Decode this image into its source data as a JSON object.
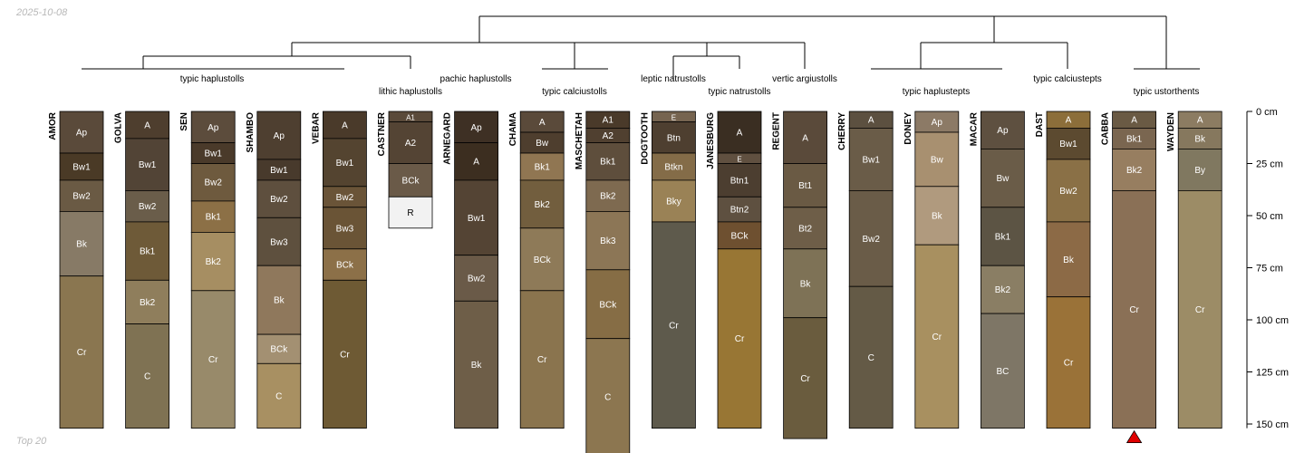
{
  "date_label": "2025-10-08",
  "footer_label": "Top 20",
  "chart_data": {
    "type": "soil-profile-sketch",
    "y_axis": {
      "unit": "cm",
      "ticks": [
        0,
        25,
        50,
        75,
        100,
        125,
        150
      ],
      "tick_labels": [
        "0 cm",
        "25 cm",
        "50 cm",
        "75 cm",
        "100 cm",
        "125 cm",
        "150 cm"
      ]
    },
    "groups": [
      {
        "label": "typic haplustolls",
        "members": [
          "AMOR",
          "GOLVA",
          "SEN",
          "SHAMBO",
          "VEBAR"
        ]
      },
      {
        "label": "lithic haplustolls",
        "members": [
          "CASTNER"
        ]
      },
      {
        "label": "pachic haplustolls",
        "members": [
          "ARNEGARD"
        ]
      },
      {
        "label": "typic calciustolls",
        "members": [
          "CHAMA",
          "MASCHETAH"
        ]
      },
      {
        "label": "leptic natrustolls",
        "members": [
          "DOGTOOTH"
        ]
      },
      {
        "label": "typic natrustolls",
        "members": [
          "JANESBURG"
        ]
      },
      {
        "label": "vertic argiustolls",
        "members": [
          "REGENT"
        ]
      },
      {
        "label": "typic haplustepts",
        "members": [
          "CHERRY",
          "DONEY",
          "MACAR"
        ]
      },
      {
        "label": "typic calciustepts",
        "members": [
          "DAST"
        ]
      },
      {
        "label": "typic ustorthents",
        "members": [
          "CABBA",
          "WAYDEN"
        ]
      }
    ],
    "profiles": [
      {
        "id": "AMOR",
        "horizons": [
          {
            "name": "Ap",
            "top": 0,
            "bottom": 20,
            "color": "#5a4a3a"
          },
          {
            "name": "Bw1",
            "top": 20,
            "bottom": 33,
            "color": "#4a3a26"
          },
          {
            "name": "Bw2",
            "top": 33,
            "bottom": 48,
            "color": "#6a5a44"
          },
          {
            "name": "Bk",
            "top": 48,
            "bottom": 79,
            "color": "#877a66"
          },
          {
            "name": "Cr",
            "top": 79,
            "bottom": 152,
            "color": "#8a7650"
          }
        ]
      },
      {
        "id": "GOLVA",
        "horizons": [
          {
            "name": "A",
            "top": 0,
            "bottom": 13,
            "color": "#4e3e2e"
          },
          {
            "name": "Bw1",
            "top": 13,
            "bottom": 38,
            "color": "#524436"
          },
          {
            "name": "Bw2",
            "top": 38,
            "bottom": 53,
            "color": "#6a5d4a"
          },
          {
            "name": "Bk1",
            "top": 53,
            "bottom": 81,
            "color": "#6e5a38"
          },
          {
            "name": "Bk2",
            "top": 81,
            "bottom": 102,
            "color": "#8f7e5c"
          },
          {
            "name": "C",
            "top": 102,
            "bottom": 152,
            "color": "#7f7253"
          }
        ]
      },
      {
        "id": "SEN",
        "horizons": [
          {
            "name": "Ap",
            "top": 0,
            "bottom": 15,
            "color": "#5c4c3c"
          },
          {
            "name": "Bw1",
            "top": 15,
            "bottom": 25,
            "color": "#4a3a2a"
          },
          {
            "name": "Bw2",
            "top": 25,
            "bottom": 43,
            "color": "#6e5a3e"
          },
          {
            "name": "Bk1",
            "top": 43,
            "bottom": 58,
            "color": "#8c7046"
          },
          {
            "name": "Bk2",
            "top": 58,
            "bottom": 86,
            "color": "#a68e62"
          },
          {
            "name": "Cr",
            "top": 86,
            "bottom": 152,
            "color": "#988a6a"
          }
        ]
      },
      {
        "id": "SHAMBO",
        "horizons": [
          {
            "name": "Ap",
            "top": 0,
            "bottom": 23,
            "color": "#4e3f30"
          },
          {
            "name": "Bw1",
            "top": 23,
            "bottom": 33,
            "color": "#483a2c"
          },
          {
            "name": "Bw2",
            "top": 33,
            "bottom": 51,
            "color": "#5e4f3e"
          },
          {
            "name": "Bw3",
            "top": 51,
            "bottom": 74,
            "color": "#5e503e"
          },
          {
            "name": "Bk",
            "top": 74,
            "bottom": 107,
            "color": "#8f785c"
          },
          {
            "name": "BCk",
            "top": 107,
            "bottom": 121,
            "color": "#a39072"
          },
          {
            "name": "C",
            "top": 121,
            "bottom": 152,
            "color": "#a89062"
          }
        ]
      },
      {
        "id": "VEBAR",
        "horizons": [
          {
            "name": "A",
            "top": 0,
            "bottom": 13,
            "color": "#4a3a2a"
          },
          {
            "name": "Bw1",
            "top": 13,
            "bottom": 36,
            "color": "#544430"
          },
          {
            "name": "Bw2",
            "top": 36,
            "bottom": 46,
            "color": "#6a5438"
          },
          {
            "name": "Bw3",
            "top": 46,
            "bottom": 66,
            "color": "#6a5436"
          },
          {
            "name": "BCk",
            "top": 66,
            "bottom": 81,
            "color": "#8c7048"
          },
          {
            "name": "Cr",
            "top": 81,
            "bottom": 152,
            "color": "#6e5a34"
          }
        ]
      },
      {
        "id": "CASTNER",
        "horizons": [
          {
            "name": "A1",
            "top": 0,
            "bottom": 5,
            "color": "#5a4a3a"
          },
          {
            "name": "A2",
            "top": 5,
            "bottom": 25,
            "color": "#544434"
          },
          {
            "name": "BCk",
            "top": 25,
            "bottom": 41,
            "color": "#6a5a48"
          },
          {
            "name": "R",
            "top": 41,
            "bottom": 56,
            "color": "#f2f2f2"
          }
        ]
      },
      {
        "id": "ARNEGARD",
        "horizons": [
          {
            "name": "Ap",
            "top": 0,
            "bottom": 15,
            "color": "#3e3024"
          },
          {
            "name": "A",
            "top": 15,
            "bottom": 33,
            "color": "#3c2e20"
          },
          {
            "name": "Bw1",
            "top": 33,
            "bottom": 69,
            "color": "#544434"
          },
          {
            "name": "Bw2",
            "top": 69,
            "bottom": 91,
            "color": "#6a5a48"
          },
          {
            "name": "Bk",
            "top": 91,
            "bottom": 152,
            "color": "#6e5e48"
          }
        ]
      },
      {
        "id": "CHAMA",
        "horizons": [
          {
            "name": "A",
            "top": 0,
            "bottom": 10,
            "color": "#5a4a3a"
          },
          {
            "name": "Bw",
            "top": 10,
            "bottom": 20,
            "color": "#4e3e2e"
          },
          {
            "name": "Bk1",
            "top": 20,
            "bottom": 33,
            "color": "#907652"
          },
          {
            "name": "Bk2",
            "top": 33,
            "bottom": 56,
            "color": "#725e3e"
          },
          {
            "name": "BCk",
            "top": 56,
            "bottom": 86,
            "color": "#8e7a58"
          },
          {
            "name": "Cr",
            "top": 86,
            "bottom": 152,
            "color": "#8a744e"
          }
        ]
      },
      {
        "id": "MASCHETAH",
        "horizons": [
          {
            "name": "A1",
            "top": 0,
            "bottom": 8,
            "color": "#4a3a2a"
          },
          {
            "name": "A2",
            "top": 8,
            "bottom": 15,
            "color": "#504030"
          },
          {
            "name": "Bk1",
            "top": 15,
            "bottom": 33,
            "color": "#5e4e3c"
          },
          {
            "name": "Bk2",
            "top": 33,
            "bottom": 48,
            "color": "#7e6a50"
          },
          {
            "name": "Bk3",
            "top": 48,
            "bottom": 76,
            "color": "#8c7656"
          },
          {
            "name": "BCk",
            "top": 76,
            "bottom": 109,
            "color": "#866d45"
          },
          {
            "name": "C",
            "top": 109,
            "bottom": 165,
            "color": "#8c7650"
          }
        ]
      },
      {
        "id": "DOGTOOTH",
        "horizons": [
          {
            "name": "E",
            "top": 0,
            "bottom": 5,
            "color": "#766450"
          },
          {
            "name": "Btn",
            "top": 5,
            "bottom": 20,
            "color": "#4e3f30"
          },
          {
            "name": "Btkn",
            "top": 20,
            "bottom": 33,
            "color": "#846c48"
          },
          {
            "name": "Bky",
            "top": 33,
            "bottom": 53,
            "color": "#9a8256"
          },
          {
            "name": "Cr",
            "top": 53,
            "bottom": 152,
            "color": "#5e5a4c"
          }
        ]
      },
      {
        "id": "JANESBURG",
        "horizons": [
          {
            "name": "A",
            "top": 0,
            "bottom": 20,
            "color": "#3a2e22"
          },
          {
            "name": "E",
            "top": 20,
            "bottom": 25,
            "color": "#605040"
          },
          {
            "name": "Btn1",
            "top": 25,
            "bottom": 41,
            "color": "#4c3e30"
          },
          {
            "name": "Btn2",
            "top": 41,
            "bottom": 53,
            "color": "#5e5040"
          },
          {
            "name": "BCk",
            "top": 53,
            "bottom": 66,
            "color": "#6e5030"
          },
          {
            "name": "Cr",
            "top": 66,
            "bottom": 152,
            "color": "#987634"
          }
        ]
      },
      {
        "id": "REGENT",
        "horizons": [
          {
            "name": "A",
            "top": 0,
            "bottom": 25,
            "color": "#5a4a3a"
          },
          {
            "name": "Bt1",
            "top": 25,
            "bottom": 46,
            "color": "#6a5a44"
          },
          {
            "name": "Bt2",
            "top": 46,
            "bottom": 66,
            "color": "#6e5e48"
          },
          {
            "name": "Bk",
            "top": 66,
            "bottom": 99,
            "color": "#7e7256"
          },
          {
            "name": "Cr",
            "top": 99,
            "bottom": 157,
            "color": "#6a5c3e"
          }
        ]
      },
      {
        "id": "CHERRY",
        "horizons": [
          {
            "name": "A",
            "top": 0,
            "bottom": 8,
            "color": "#5c5040"
          },
          {
            "name": "Bw1",
            "top": 8,
            "bottom": 38,
            "color": "#6a5c48"
          },
          {
            "name": "Bw2",
            "top": 38,
            "bottom": 84,
            "color": "#6a5c48"
          },
          {
            "name": "C",
            "top": 84,
            "bottom": 152,
            "color": "#645a46"
          }
        ]
      },
      {
        "id": "DONEY",
        "horizons": [
          {
            "name": "Ap",
            "top": 0,
            "bottom": 10,
            "color": "#8c7a66"
          },
          {
            "name": "Bw",
            "top": 10,
            "bottom": 36,
            "color": "#a89070"
          },
          {
            "name": "Bk",
            "top": 36,
            "bottom": 64,
            "color": "#b09a7e"
          },
          {
            "name": "Cr",
            "top": 64,
            "bottom": 152,
            "color": "#a89060"
          }
        ]
      },
      {
        "id": "MACAR",
        "horizons": [
          {
            "name": "Ap",
            "top": 0,
            "bottom": 18,
            "color": "#5e5040"
          },
          {
            "name": "Bw",
            "top": 18,
            "bottom": 46,
            "color": "#6a5c48"
          },
          {
            "name": "Bk1",
            "top": 46,
            "bottom": 74,
            "color": "#5c5444"
          },
          {
            "name": "Bk2",
            "top": 74,
            "bottom": 97,
            "color": "#8a7e64"
          },
          {
            "name": "BC",
            "top": 97,
            "bottom": 152,
            "color": "#7e7666"
          }
        ]
      },
      {
        "id": "DAST",
        "horizons": [
          {
            "name": "A",
            "top": 0,
            "bottom": 8,
            "color": "#8c6e3a"
          },
          {
            "name": "Bw1",
            "top": 8,
            "bottom": 23,
            "color": "#5c4a30"
          },
          {
            "name": "Bw2",
            "top": 23,
            "bottom": 53,
            "color": "#8a7046"
          },
          {
            "name": "Bk",
            "top": 53,
            "bottom": 89,
            "color": "#8c6a46"
          },
          {
            "name": "Cr",
            "top": 89,
            "bottom": 152,
            "color": "#9a7238"
          }
        ]
      },
      {
        "id": "CABBA",
        "horizons": [
          {
            "name": "A",
            "top": 0,
            "bottom": 8,
            "color": "#6a5a44"
          },
          {
            "name": "Bk1",
            "top": 8,
            "bottom": 18,
            "color": "#7a6650"
          },
          {
            "name": "Bk2",
            "top": 18,
            "bottom": 38,
            "color": "#977e60"
          },
          {
            "name": "Cr",
            "top": 38,
            "bottom": 152,
            "color": "#8a7056"
          }
        ]
      },
      {
        "id": "WAYDEN",
        "horizons": [
          {
            "name": "A",
            "top": 0,
            "bottom": 8,
            "color": "#8c7c62"
          },
          {
            "name": "Bk",
            "top": 8,
            "bottom": 18,
            "color": "#86785e"
          },
          {
            "name": "By",
            "top": 18,
            "bottom": 38,
            "color": "#807860"
          },
          {
            "name": "Cr",
            "top": 38,
            "bottom": 152,
            "color": "#9c8c66"
          }
        ]
      }
    ],
    "truncated_marker": "CABBA"
  }
}
